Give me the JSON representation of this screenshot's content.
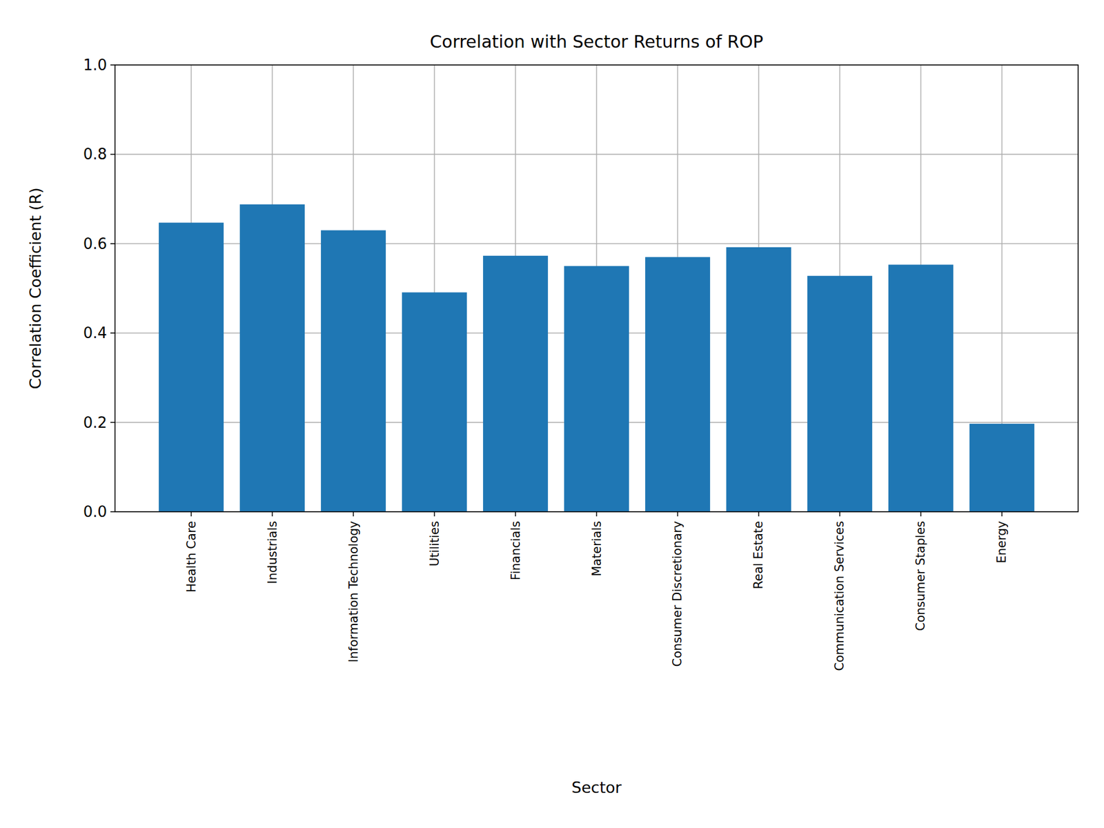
{
  "chart_data": {
    "type": "bar",
    "title": "Correlation with Sector Returns of ROP",
    "x_label": "Sector",
    "y_label": "Correlation Coefficient (R)",
    "categories": [
      "Health Care",
      "Industrials",
      "Information Technology",
      "Utilities",
      "Financials",
      "Materials",
      "Consumer Discretionary",
      "Real Estate",
      "Communication Services",
      "Consumer Staples",
      "Energy"
    ],
    "values": [
      0.647,
      0.688,
      0.63,
      0.491,
      0.573,
      0.55,
      0.57,
      0.592,
      0.528,
      0.553,
      0.197
    ],
    "color": "#1f77b4",
    "ylim": [
      0,
      1
    ],
    "yticks": [
      {
        "value": 0,
        "label": "0.0"
      },
      0.2,
      0.4,
      0.6,
      0.8,
      {
        "value": 1,
        "label": "1.0"
      }
    ],
    "grid": true
  }
}
